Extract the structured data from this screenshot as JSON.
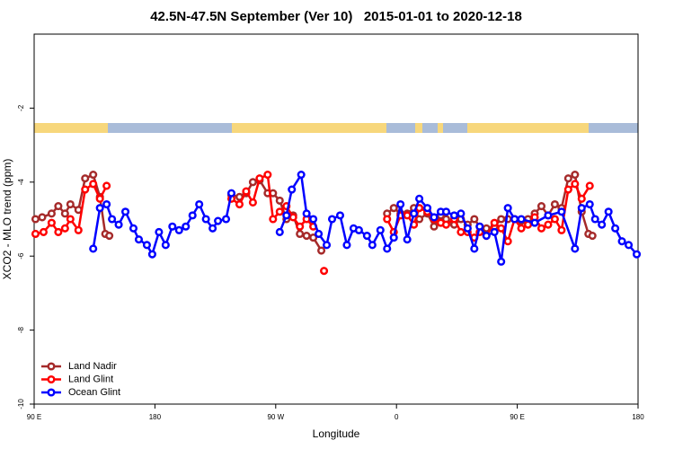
{
  "chart_data": {
    "type": "line",
    "title": "42.5N-47.5N September (Ver 10)   2015-01-01 to 2020-12-18",
    "x_label": "Longitude",
    "y_label": "XCO2 - MLO trend (ppm)",
    "xlim": [
      90,
      540
    ],
    "ylim": [
      -10,
      0
    ],
    "xticks": [
      {
        "value": 90,
        "label": "90 E"
      },
      180,
      {
        "value": 270,
        "label": "90 W"
      },
      {
        "value": 360,
        "label": "0"
      },
      {
        "value": 450,
        "label": "90 E"
      },
      {
        "value": 540,
        "label": "180"
      }
    ],
    "yticks": [
      -10,
      -8,
      -6,
      -4,
      -2
    ],
    "legend": "lower left",
    "series": [
      {
        "name": "Land Nadir",
        "color": "#a52a2a",
        "x": [
          91,
          96,
          103,
          108,
          113,
          117,
          123,
          128,
          134,
          139,
          143,
          146,
          null,
          237,
          243,
          248,
          253,
          258,
          264,
          268,
          273,
          278,
          283,
          288,
          293,
          298,
          304,
          null,
          353,
          358,
          363,
          368,
          373,
          377,
          383,
          388,
          393,
          397,
          403,
          408,
          413,
          418,
          422,
          427,
          433,
          438,
          443,
          448,
          453,
          458,
          463,
          468,
          473,
          478,
          483,
          488,
          493,
          498,
          503,
          506
        ],
        "values": [
          -5.0,
          -4.95,
          -4.85,
          -4.65,
          -4.85,
          -4.6,
          -4.75,
          -3.9,
          -3.8,
          -4.4,
          -5.4,
          -5.45,
          null,
          -4.35,
          -4.4,
          -4.3,
          -4.0,
          -3.95,
          -4.3,
          -4.3,
          -4.5,
          -5.0,
          -4.9,
          -5.4,
          -5.45,
          -5.5,
          -5.85,
          null,
          -4.85,
          -4.7,
          -4.85,
          -4.85,
          -4.7,
          -5.0,
          -4.85,
          -5.2,
          -4.9,
          -5.0,
          -5.15,
          -5.0,
          -5.15,
          -5.0,
          -5.2,
          -5.25,
          -5.2,
          -5.0,
          -5.0,
          -5.0,
          -5.05,
          -5.0,
          -4.85,
          -4.65,
          -4.9,
          -4.6,
          -4.7,
          -3.9,
          -3.8,
          -4.8,
          -5.4,
          -5.45
        ]
      },
      {
        "name": "Land Glint",
        "color": "#ff0000",
        "x": [
          91,
          97,
          103,
          108,
          113,
          117,
          123,
          128,
          134,
          139,
          144,
          null,
          237,
          243,
          248,
          253,
          258,
          264,
          268,
          273,
          278,
          283,
          288,
          293,
          298,
          null,
          306,
          null,
          353,
          358,
          363,
          368,
          373,
          377,
          383,
          388,
          393,
          397,
          403,
          408,
          413,
          418,
          422,
          427,
          433,
          438,
          443,
          448,
          453,
          458,
          463,
          468,
          473,
          478,
          483,
          488,
          493,
          498,
          504
        ],
        "values": [
          -5.4,
          -5.35,
          -5.1,
          -5.35,
          -5.25,
          -5.0,
          -5.3,
          -4.2,
          -4.05,
          -4.45,
          -4.1,
          null,
          -4.45,
          -4.6,
          -4.25,
          -4.55,
          -3.9,
          -3.8,
          -5.0,
          -4.8,
          -4.65,
          -4.95,
          -5.2,
          -5.0,
          -5.2,
          null,
          -6.4,
          null,
          -5.0,
          -5.35,
          -4.9,
          -4.9,
          -5.15,
          -4.7,
          -4.8,
          -5.0,
          -5.1,
          -5.15,
          -5.0,
          -5.35,
          -5.35,
          -5.5,
          -5.35,
          -5.45,
          -5.1,
          -5.25,
          -5.6,
          -5.0,
          -5.25,
          -5.15,
          -4.95,
          -5.25,
          -5.15,
          -5.0,
          -5.3,
          -4.2,
          -4.05,
          -4.45,
          -4.1
        ]
      },
      {
        "name": "Ocean Glint",
        "color": "#0000ff",
        "x": [
          134,
          139,
          144,
          148,
          153,
          158,
          164,
          168,
          174,
          178,
          183,
          188,
          193,
          198,
          203,
          208,
          213,
          218,
          223,
          227,
          233,
          237,
          null,
          273,
          278,
          282,
          289,
          293,
          298,
          302,
          308,
          312,
          318,
          323,
          328,
          332,
          338,
          342,
          348,
          353,
          358,
          363,
          368,
          373,
          377,
          383,
          388,
          393,
          397,
          403,
          408,
          413,
          418,
          422,
          427,
          433,
          438,
          443,
          448,
          453,
          463,
          473,
          483,
          493,
          498,
          504,
          508,
          513,
          518,
          523,
          528,
          533,
          539
        ],
        "values": [
          -5.8,
          -4.7,
          -4.6,
          -5.0,
          -5.15,
          -4.8,
          -5.25,
          -5.55,
          -5.7,
          -5.95,
          -5.35,
          -5.7,
          -5.2,
          -5.3,
          -5.2,
          -4.9,
          -4.6,
          -5.0,
          -5.25,
          -5.05,
          -5.0,
          -4.3,
          null,
          -5.35,
          -4.9,
          -4.2,
          -3.8,
          -4.85,
          -5.0,
          -5.4,
          -5.7,
          -5.0,
          -4.9,
          -5.7,
          -5.25,
          -5.3,
          -5.45,
          -5.7,
          -5.3,
          -5.8,
          -5.5,
          -4.6,
          -5.55,
          -4.85,
          -4.45,
          -4.7,
          -4.95,
          -4.8,
          -4.8,
          -4.9,
          -4.85,
          -5.25,
          -5.8,
          -5.2,
          -5.45,
          -5.35,
          -6.15,
          -4.7,
          -5.0,
          -5.0,
          -5.1,
          -4.9,
          -4.8,
          -5.8,
          -4.7,
          -4.6,
          -5.0,
          -5.15,
          -4.8,
          -5.25,
          -5.6,
          -5.7,
          -5.95
        ]
      }
    ]
  }
}
